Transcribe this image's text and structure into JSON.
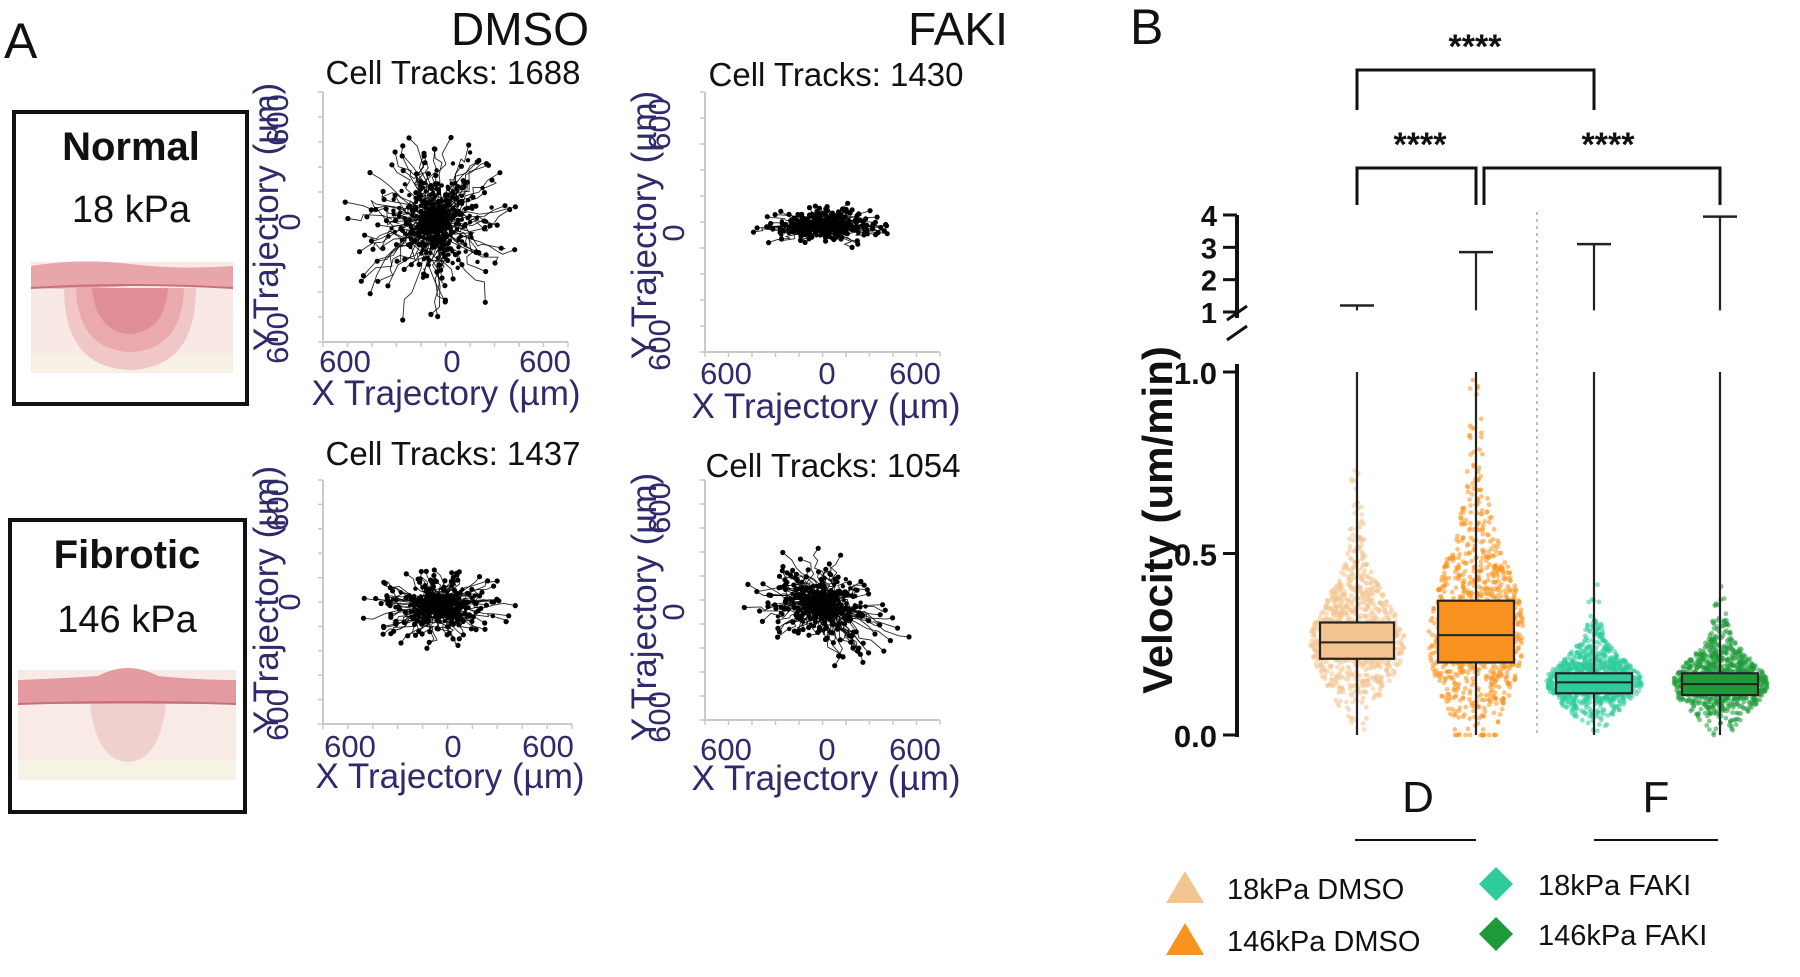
{
  "panel_a_label": "A",
  "panel_b_label": "B",
  "col_dmso": "DMSO",
  "col_faki": "FAKI",
  "cond_normal": {
    "name": "Normal",
    "stiffness": "18 kPa"
  },
  "cond_fibrotic": {
    "name": "Fibrotic",
    "stiffness": "146 kPa"
  },
  "colors": {
    "axis_label": "#2f2a6b",
    "track": "#000000",
    "dmso18": "#f2c48f",
    "dmso146": "#f7931e",
    "faki18": "#2ecc9a",
    "faki146": "#1f9a3a"
  },
  "chart_data": [
    {
      "type": "scatter",
      "title": "Cell Tracks: 1688",
      "condition": "Normal 18 kPa",
      "treatment": "DMSO",
      "xlabel": "X Trajectory (µm)",
      "ylabel": "Y Trajectory (µm)",
      "xticks": [
        "600",
        "0",
        "600"
      ],
      "yticks": [
        "600",
        "0",
        "600"
      ],
      "xlim": [
        -600,
        600
      ],
      "ylim": [
        -600,
        600
      ],
      "spread_um": [
        520,
        520
      ]
    },
    {
      "type": "scatter",
      "title": "Cell Tracks: 1430",
      "condition": "Normal 18 kPa",
      "treatment": "FAKI",
      "xlabel": "X Trajectory (µm)",
      "ylabel": "Y Trajectory (µm)",
      "xticks": [
        "600",
        "0",
        "600"
      ],
      "yticks": [
        "600",
        "0",
        "600"
      ],
      "xlim": [
        -600,
        600
      ],
      "ylim": [
        -600,
        600
      ],
      "spread_um": [
        420,
        120
      ]
    },
    {
      "type": "scatter",
      "title": "Cell Tracks: 1437",
      "condition": "Fibrotic 146 kPa",
      "treatment": "DMSO",
      "xlabel": "X Trajectory (µm)",
      "ylabel": "Y Trajectory (µm)",
      "xticks": [
        "600",
        "0",
        "600"
      ],
      "yticks": [
        "600",
        "0",
        "600"
      ],
      "xlim": [
        -600,
        600
      ],
      "ylim": [
        -600,
        600
      ],
      "spread_um": [
        420,
        230
      ]
    },
    {
      "type": "scatter",
      "title": "Cell Tracks: 1054",
      "condition": "Fibrotic 146 kPa",
      "treatment": "FAKI",
      "xlabel": "X Trajectory (µm)",
      "ylabel": "Y Trajectory (µm)",
      "xticks": [
        "600",
        "0",
        "600"
      ],
      "yticks": [
        "600",
        "0",
        "600"
      ],
      "xlim": [
        -600,
        600
      ],
      "ylim": [
        -600,
        600
      ],
      "spread_um": [
        460,
        300
      ]
    },
    {
      "type": "box",
      "ylabel": "Velocity (um/min)",
      "lower_ticks": [
        "0.0",
        "0.5",
        "1.0"
      ],
      "upper_ticks": [
        "1",
        "2",
        "3",
        "4"
      ],
      "axis_break": [
        1.0,
        1.0
      ],
      "lower_range": [
        0,
        1.0
      ],
      "upper_range": [
        1,
        4
      ],
      "group_labels": [
        "D",
        "F"
      ],
      "series": [
        {
          "name": "18kPa DMSO",
          "group": "D",
          "min": 0.0,
          "q1": 0.21,
          "median": 0.255,
          "q3": 0.31,
          "max": 1.2
        },
        {
          "name": "146kPa DMSO",
          "group": "D",
          "min": 0.0,
          "q1": 0.2,
          "median": 0.275,
          "q3": 0.37,
          "max": 2.85
        },
        {
          "name": "18kPa FAKI",
          "group": "F",
          "min": 0.0,
          "q1": 0.115,
          "median": 0.145,
          "q3": 0.17,
          "max": 3.1
        },
        {
          "name": "146kPa FAKI",
          "group": "F",
          "min": 0.0,
          "q1": 0.11,
          "median": 0.14,
          "q3": 0.17,
          "max": 3.95
        }
      ],
      "significance": [
        {
          "pair": [
            "18kPa DMSO",
            "18kPa FAKI"
          ],
          "label": "****"
        },
        {
          "pair": [
            "18kPa DMSO",
            "146kPa DMSO"
          ],
          "label": "****"
        },
        {
          "pair": [
            "146kPa DMSO",
            "146kPa FAKI"
          ],
          "label": "****"
        }
      ]
    }
  ]
}
